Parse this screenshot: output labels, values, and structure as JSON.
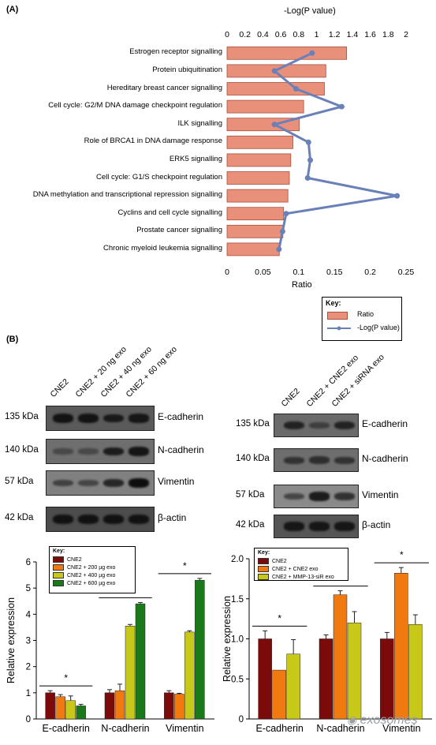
{
  "panel_a": {
    "label": "(A)",
    "top_axis_title": "-Log(P value)",
    "bottom_axis_title": "Ratio",
    "key": {
      "title": "Key:",
      "ratio_label": "Ratio",
      "pvalue_label": "-Log(P value)"
    }
  },
  "panel_b": {
    "label": "(B)",
    "left_blot": {
      "lanes": [
        "CNE2",
        "CNE2 + 20 ng exo",
        "CNE2 + 40 ng exo",
        "CNE2 + 60 ng exo"
      ],
      "rows": [
        {
          "mw": "135 kDa",
          "protein": "E-cadherin"
        },
        {
          "mw": "140 kDa",
          "protein": "N-cadherin"
        },
        {
          "mw": "57 kDa",
          "protein": "Vimentin"
        },
        {
          "mw": "42 kDa",
          "protein": "β-actin"
        }
      ]
    },
    "right_blot": {
      "lanes": [
        "CNE2",
        "CNE2 + CNE2 exo",
        "CNE2 + siRNA exo"
      ],
      "rows": [
        {
          "mw": "135 kDa",
          "protein": "E-cadherin"
        },
        {
          "mw": "140 kDa",
          "protein": "N-cadherin"
        },
        {
          "mw": "57 kDa",
          "protein": "Vimentin"
        },
        {
          "mw": "42 kDa",
          "protein": "β-actin"
        }
      ]
    },
    "watermark": "exosomes"
  },
  "chart_data": [
    {
      "type": "bar",
      "orientation": "horizontal",
      "categories": [
        "Estrogen receptor signalling",
        "Protein ubiquitination",
        "Hereditary breast cancer signalling",
        "Cell cycle: G2/M DNA damage checkpoint regulation",
        "ILK signalling",
        "Role of BRCA1 in DNA damage response",
        "ERK5 signalling",
        "Cell cycle: G1/S checkpoint regulation",
        "DNA methylation and transcriptional repression signalling",
        "Cyclins and cell cycle signalling",
        "Prostate cancer signalling",
        "Chronic myeloid leukemia signalling"
      ],
      "series": [
        {
          "name": "Ratio",
          "axis": "bottom",
          "values": [
            0.167,
            0.138,
            0.136,
            0.107,
            0.101,
            0.092,
            0.089,
            0.087,
            0.085,
            0.079,
            0.078,
            0.073
          ]
        },
        {
          "name": "-Log(P value)",
          "axis": "top",
          "values": [
            0.95,
            0.53,
            0.77,
            1.28,
            0.53,
            0.91,
            0.93,
            0.9,
            1.9,
            0.66,
            0.62,
            0.58
          ]
        }
      ],
      "xlabel_bottom": "Ratio",
      "xlabel_top": "-Log(P value)",
      "xlim_bottom": [
        0,
        0.25
      ],
      "xlim_top": [
        0,
        2
      ],
      "xticks_bottom": [
        "0",
        "0.05",
        "0.1",
        "0.15",
        "0.2",
        "0.25"
      ],
      "xticks_top": [
        "0",
        "0.2",
        "0.4",
        "0.6",
        "0.8",
        "1",
        "1.2",
        "1.4",
        "1.6",
        "1.8",
        "2"
      ],
      "colors": {
        "bar": "#e8907a",
        "bar_edge": "#a85040",
        "line": "#6a80b8"
      }
    },
    {
      "type": "bar",
      "categories": [
        "E-cadherin",
        "N-cadherin",
        "Vimentin"
      ],
      "series": [
        {
          "name": "CNE2",
          "color": "#7b0a0a",
          "values": [
            1.0,
            1.0,
            1.0
          ],
          "errors": [
            0.08,
            0.12,
            0.08
          ]
        },
        {
          "name": "CNE2 + 200 µg exo",
          "color": "#f07a10",
          "values": [
            0.85,
            1.08,
            0.95
          ],
          "errors": [
            0.08,
            0.25,
            0.03
          ]
        },
        {
          "name": "CNE2 + 400 µg exo",
          "color": "#c8c818",
          "values": [
            0.7,
            3.55,
            3.32
          ],
          "errors": [
            0.18,
            0.06,
            0.05
          ]
        },
        {
          "name": "CNE2 + 600 µg exo",
          "color": "#1a7a1a",
          "values": [
            0.5,
            4.4,
            5.3
          ],
          "errors": [
            0.06,
            0.05,
            0.07
          ]
        }
      ],
      "ylabel": "Relative expression",
      "ylim": [
        0,
        6
      ],
      "yticks": [
        "0",
        "1",
        "2",
        "3",
        "4",
        "5",
        "6"
      ],
      "key_title": "Key:",
      "significance": "*"
    },
    {
      "type": "bar",
      "categories": [
        "E-cadherin",
        "N-cadherin",
        "Vimentin"
      ],
      "series": [
        {
          "name": "CNE2",
          "color": "#7b0a0a",
          "values": [
            1.0,
            1.0,
            1.0
          ],
          "errors": [
            0.1,
            0.05,
            0.08
          ]
        },
        {
          "name": "CNE2 + CNE2 exo",
          "color": "#f07a10",
          "values": [
            0.61,
            1.55,
            1.82
          ],
          "errors": [
            0.0,
            0.05,
            0.07
          ]
        },
        {
          "name": "CNE2 + MMP-13-siR exo",
          "color": "#c8c818",
          "values": [
            0.81,
            1.2,
            1.18
          ],
          "errors": [
            0.18,
            0.14,
            0.12
          ]
        }
      ],
      "ylabel": "Relative expression",
      "ylim": [
        0,
        2.0
      ],
      "yticks": [
        "0",
        "0.5",
        "1.0",
        "1.5",
        "2.0"
      ],
      "key_title": "Key:",
      "significance": "*"
    }
  ]
}
